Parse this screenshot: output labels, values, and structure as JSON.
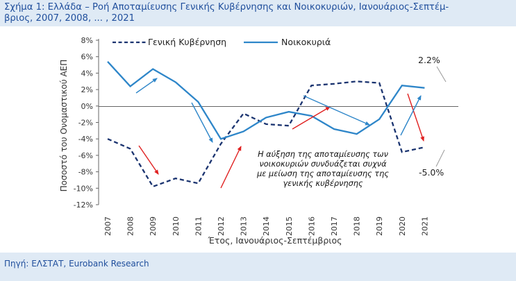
{
  "figure": {
    "title": "Σχήμα 1: Ελλάδα – Ροή Αποταμίευσης Γενικής Κυβέρνησης και Νοικοκυριών, Ιανουάριος-Σεπτέμ-",
    "title_line2": "βριος, 2007, 2008, ... , 2021",
    "source": "Πηγή: ΕΛΣΤΑΤ, Eurobank Research"
  },
  "chart_data": {
    "type": "line",
    "xlabel": "Έτος, Ιανουάριος-Σεπτέμβριος",
    "ylabel": "Ποσοστό του Ονομαστικού ΑΕΠ",
    "x": [
      "2007",
      "2008",
      "2009",
      "2010",
      "2011",
      "2012",
      "2013",
      "2014",
      "2015",
      "2016",
      "2017",
      "2018",
      "2019",
      "2020",
      "2021"
    ],
    "yticks": [
      "8%",
      "6%",
      "4%",
      "2%",
      "0%",
      "-2%",
      "-4%",
      "-6%",
      "-8%",
      "-10%",
      "-12%"
    ],
    "ylim": [
      -12,
      8
    ],
    "grid": false,
    "legend_position": "top-left",
    "series": [
      {
        "name": "Γενική Κυβέρνηση",
        "style": "dashed",
        "color": "#1b3470",
        "values": [
          -4.0,
          -5.2,
          -9.8,
          -8.8,
          -9.4,
          -4.6,
          -0.9,
          -2.2,
          -2.4,
          2.5,
          2.7,
          3.0,
          2.8,
          -5.6,
          -5.0
        ]
      },
      {
        "name": "Νοικοκυριά",
        "style": "solid",
        "color": "#2e86c9",
        "values": [
          5.4,
          2.4,
          4.5,
          2.9,
          0.5,
          -4.0,
          -3.1,
          -1.4,
          -0.7,
          -1.2,
          -2.8,
          -3.4,
          -1.6,
          2.5,
          2.2
        ]
      }
    ],
    "annotations": {
      "text": [
        "Η αύξηση της αποταμίευσης των",
        "νοικοκυριών συνδυάζεται συχνά",
        "με μείωση της αποταμίευσης της",
        "γενικής κυβέρνησης"
      ],
      "label_end_households": "2.2%",
      "label_end_government": "-5.0%"
    },
    "arrow_colors": {
      "red": "#e02020",
      "blue": "#2e86c9"
    }
  }
}
